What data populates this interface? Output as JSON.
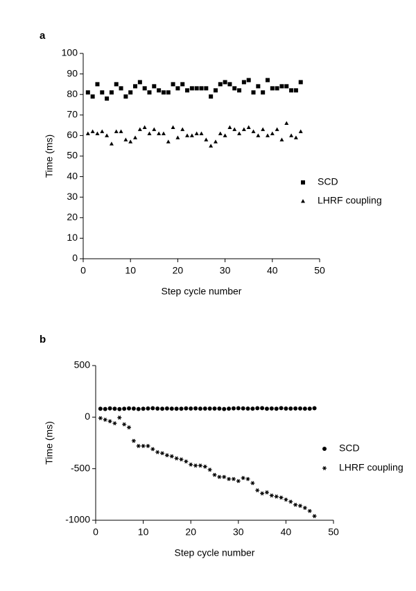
{
  "chart_data": [
    {
      "type": "scatter",
      "panel_label": "a",
      "x_label": "Step cycle number",
      "y_label": "Time (ms)",
      "x": [
        1,
        2,
        3,
        4,
        5,
        6,
        7,
        8,
        9,
        10,
        11,
        12,
        13,
        14,
        15,
        16,
        17,
        18,
        19,
        20,
        21,
        22,
        23,
        24,
        25,
        26,
        27,
        28,
        29,
        30,
        31,
        32,
        33,
        34,
        35,
        36,
        37,
        38,
        39,
        40,
        41,
        42,
        43,
        44,
        45,
        46
      ],
      "series": [
        {
          "name": "SCD",
          "color": "#000000",
          "marker": "square",
          "values": [
            81,
            79,
            85,
            81,
            78,
            81,
            85,
            83,
            79,
            81,
            84,
            86,
            83,
            81,
            84,
            82,
            81,
            81,
            85,
            83,
            85,
            82,
            83,
            83,
            83,
            83,
            79,
            82,
            85,
            86,
            85,
            83,
            82,
            86,
            87,
            81,
            84,
            81,
            87,
            83,
            83,
            84,
            84,
            82,
            82,
            86
          ]
        },
        {
          "name": "LHRF coupling",
          "color": "#000000",
          "marker": "triangle",
          "values": [
            61,
            62,
            61,
            62,
            60,
            56,
            62,
            62,
            58,
            57,
            59,
            63,
            64,
            61,
            63,
            61,
            61,
            57,
            64,
            59,
            63,
            60,
            60,
            61,
            61,
            58,
            55,
            57,
            61,
            60,
            64,
            63,
            61,
            63,
            64,
            62,
            60,
            63,
            60,
            61,
            63,
            58,
            66,
            60,
            59,
            62
          ]
        }
      ],
      "xlim": [
        0,
        50
      ],
      "xticks": [
        0,
        10,
        20,
        30,
        40,
        50
      ],
      "ylim": [
        0,
        100
      ],
      "yticks": [
        0,
        10,
        20,
        30,
        40,
        50,
        60,
        70,
        80,
        90,
        100
      ],
      "grid": false,
      "legend": "right"
    },
    {
      "type": "scatter",
      "panel_label": "b",
      "x_label": "Step cycle number",
      "y_label": "Time (ms)",
      "x": [
        1,
        2,
        3,
        4,
        5,
        6,
        7,
        8,
        9,
        10,
        11,
        12,
        13,
        14,
        15,
        16,
        17,
        18,
        19,
        20,
        21,
        22,
        23,
        24,
        25,
        26,
        27,
        28,
        29,
        30,
        31,
        32,
        33,
        34,
        35,
        36,
        37,
        38,
        39,
        40,
        41,
        42,
        43,
        44,
        45,
        46
      ],
      "series": [
        {
          "name": "SCD",
          "color": "#000000",
          "marker": "circle",
          "values": [
            81,
            79,
            85,
            81,
            78,
            81,
            85,
            83,
            79,
            81,
            84,
            86,
            83,
            81,
            84,
            82,
            81,
            81,
            85,
            83,
            85,
            82,
            83,
            83,
            83,
            83,
            79,
            82,
            85,
            86,
            85,
            83,
            82,
            86,
            87,
            81,
            84,
            81,
            87,
            83,
            83,
            84,
            84,
            82,
            82,
            86
          ]
        },
        {
          "name": "LHRF coupling",
          "color": "#000000",
          "marker": "star",
          "values": [
            -10,
            -25,
            -40,
            -60,
            -5,
            -70,
            -100,
            -230,
            -280,
            -280,
            -280,
            -310,
            -340,
            -350,
            -370,
            -380,
            -400,
            -410,
            -430,
            -460,
            -470,
            -470,
            -480,
            -510,
            -560,
            -580,
            -580,
            -600,
            -600,
            -620,
            -590,
            -600,
            -640,
            -710,
            -740,
            -730,
            -760,
            -770,
            -780,
            -800,
            -820,
            -850,
            -860,
            -880,
            -910,
            -960
          ]
        }
      ],
      "xlim": [
        0,
        50
      ],
      "xticks": [
        0,
        10,
        20,
        30,
        40,
        50
      ],
      "ylim": [
        -1000,
        500
      ],
      "yticks": [
        -1000,
        -500,
        0,
        500
      ],
      "grid": false,
      "legend": "right"
    }
  ]
}
